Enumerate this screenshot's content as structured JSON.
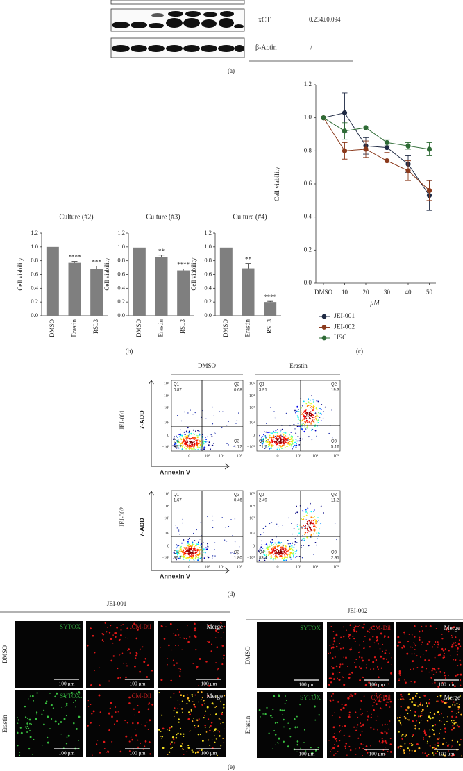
{
  "panel_a": {
    "rows": [
      {
        "label": "xCT",
        "value": "0.234±0.094"
      },
      {
        "label": "β-Actin",
        "value": "/"
      }
    ],
    "caption": "(a)"
  },
  "chart_data": [
    {
      "type": "bar",
      "title": "Culture (#2)",
      "y_label": "Cell viability",
      "categories": [
        "DMSO",
        "Erastin",
        "RSL3"
      ],
      "values": [
        1.0,
        0.77,
        0.68
      ],
      "errors": [
        null,
        0.02,
        0.04
      ],
      "significance": [
        null,
        "****",
        "***"
      ],
      "color": "#7f7f7f",
      "ylim": [
        0,
        1.2
      ],
      "yticks": [
        {
          "value": 0,
          "label": "0.0"
        },
        0.2,
        0.4,
        0.6,
        0.8,
        {
          "value": 1,
          "label": "1.0"
        },
        1.2
      ]
    },
    {
      "type": "bar",
      "title": "Culture (#3)",
      "y_label": "Cell viability",
      "categories": [
        "DMSO",
        "Erastin",
        "RSL3"
      ],
      "values": [
        0.99,
        0.85,
        0.66
      ],
      "errors": [
        null,
        0.03,
        0.02
      ],
      "significance": [
        null,
        "**",
        "****"
      ],
      "color": "#7f7f7f",
      "ylim": [
        0,
        1.2
      ],
      "yticks": [
        {
          "value": 0,
          "label": "0.0"
        },
        0.2,
        0.4,
        0.6,
        0.8,
        {
          "value": 1,
          "label": "1.0"
        },
        1.2
      ]
    },
    {
      "type": "bar",
      "title": "Culture (#4)",
      "y_label": "Cell viability",
      "categories": [
        "DMSO",
        "Erastin",
        "RSL3"
      ],
      "values": [
        0.99,
        0.69,
        0.2
      ],
      "errors": [
        null,
        0.07,
        0.01
      ],
      "significance": [
        null,
        "**",
        "****"
      ],
      "color": "#7f7f7f",
      "ylim": [
        0,
        1.2
      ],
      "yticks": [
        {
          "value": 0,
          "label": "0.0"
        },
        0.2,
        0.4,
        0.6,
        0.8,
        {
          "value": 1,
          "label": "1.0"
        },
        1.2
      ]
    },
    {
      "type": "line",
      "x_label": "μM",
      "y_label": "Cell viability",
      "categories": [
        "DMSO",
        "10",
        "20",
        "30",
        "40",
        "50"
      ],
      "series": [
        {
          "name": "JEI-001",
          "color": "#1f2a44",
          "values": [
            1.0,
            1.03,
            0.83,
            0.82,
            0.72,
            0.53
          ],
          "errors": [
            null,
            0.12,
            0.05,
            0.13,
            0.05,
            0.09
          ]
        },
        {
          "name": "JEI-002",
          "color": "#8b3a1c",
          "values": [
            1.0,
            0.8,
            0.81,
            0.74,
            0.68,
            0.56
          ],
          "errors": [
            null,
            0.05,
            0.05,
            0.05,
            0.06,
            0.06
          ]
        },
        {
          "name": "HSC",
          "color": "#2e6b35",
          "values": [
            1.0,
            0.92,
            0.94,
            0.85,
            0.83,
            0.81
          ],
          "errors": [
            null,
            0.05,
            null,
            0.02,
            0.02,
            0.04
          ]
        }
      ],
      "ylim": [
        0,
        1.2
      ],
      "yticks": [
        {
          "value": 0,
          "label": "0.0"
        },
        0.2,
        0.4,
        0.6,
        0.8,
        {
          "value": 1,
          "label": "1.0"
        },
        1.2
      ],
      "legend": "bottom-left"
    }
  ],
  "panel_b_caption": "(b)",
  "panel_c_caption": "(c)",
  "panel_d": {
    "columns": [
      "DMSO",
      "Erastin"
    ],
    "quadrant_names": [
      "Q1",
      "Q2",
      "Q3",
      "Q4"
    ],
    "rows": [
      {
        "label": "JEI-001",
        "plots": [
          [
            "0.87",
            "0.68",
            "1.72",
            "96.7"
          ],
          [
            "3.91",
            "19.3",
            "5.16",
            "71.7"
          ]
        ]
      },
      {
        "label": "JEI-002",
        "plots": [
          [
            "1.67",
            "0.46",
            "1.80",
            "96.1"
          ],
          [
            "2.49",
            "11.2",
            "2.91",
            "83.4"
          ]
        ]
      }
    ],
    "y_axis_label": "7-ADD",
    "x_axis_label": "Annexin V",
    "y_tick_labels": [
      "10⁵",
      "10⁴",
      "10³",
      "10²",
      "0",
      "−10²"
    ],
    "x_tick_labels": [
      "0",
      "10³",
      "10⁴",
      "10⁵"
    ],
    "caption": "(d)"
  },
  "panel_e": {
    "groups": [
      "JEI-001",
      "JEI-002"
    ],
    "rows": [
      "DMSO",
      "Erastin"
    ],
    "channels": [
      "SYTOX",
      "CM-Dil",
      "Merge"
    ],
    "scale_bar": "100 μm",
    "caption": "(e)"
  }
}
